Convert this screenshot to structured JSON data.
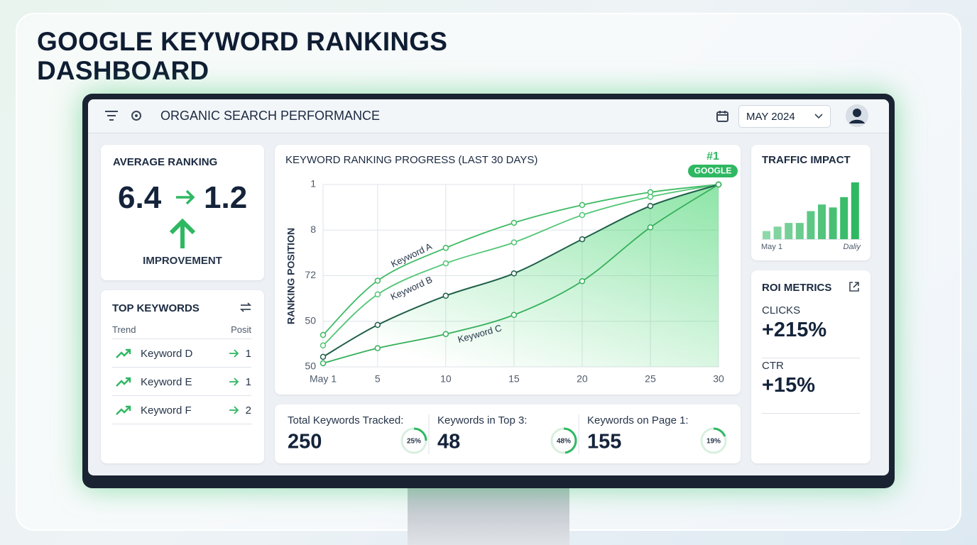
{
  "title": "GOOGLE KEYWORD RANKINGS DASHBOARD",
  "header": {
    "title": "ORGANIC SEARCH PERFORMANCE",
    "date": "MAY 2024"
  },
  "average_ranking": {
    "title": "AVERAGE RANKING",
    "from": "6.4",
    "to": "1.2",
    "label": "IMPROVEMENT"
  },
  "top_keywords": {
    "title": "TOP KEYWORDS",
    "columns": [
      "Trend",
      "Posit"
    ],
    "rows": [
      {
        "keyword": "Keyword D",
        "position": 1
      },
      {
        "keyword": "Keyword E",
        "position": 1
      },
      {
        "keyword": "Keyword F",
        "position": 2
      }
    ]
  },
  "stats": [
    {
      "label": "Total Keywords Tracked:",
      "value": 250,
      "percent": 25,
      "percent_label": "25%"
    },
    {
      "label": "Keywords in Top 3:",
      "value": 48,
      "percent": 48,
      "percent_label": "48%"
    },
    {
      "label": "Keywords on Page 1:",
      "value": 155,
      "percent": 19,
      "percent_label": "19%"
    }
  ],
  "traffic": {
    "title": "TRAFFIC IMPACT",
    "type": "bar",
    "values": [
      11,
      17,
      22,
      22,
      38,
      47,
      43,
      57,
      77
    ],
    "x_labels": [
      "May 1",
      "Daliy"
    ],
    "color": "#2fb862"
  },
  "roi": {
    "title": "ROI METRICS",
    "metrics": [
      {
        "label": "CLICKS",
        "value": "+215%"
      },
      {
        "label": "CTR",
        "value": "+15%"
      }
    ]
  },
  "chart_data": {
    "type": "line",
    "title": "KEYWORD RANKING PROGRESS (LAST 30 DAYS)",
    "y_label": "RANKING POSITION",
    "badge": "#1",
    "badge_label": "GOOGLE",
    "x": [
      1,
      5,
      10,
      15,
      20,
      25,
      30
    ],
    "xlim": [
      1,
      30
    ],
    "xticks": [
      {
        "value": 1,
        "label": "May 1"
      },
      5,
      10,
      15,
      20,
      25,
      30
    ],
    "ylim": [
      0,
      4
    ],
    "yticks": [
      {
        "value": 4,
        "label": "1"
      },
      {
        "value": 3,
        "label": "8"
      },
      {
        "value": 2,
        "label": "72"
      },
      {
        "value": 1,
        "label": "50"
      },
      {
        "value": 0,
        "label": "50"
      }
    ],
    "grid": true,
    "series": [
      {
        "name": "Keyword A",
        "color": "#3dbb63",
        "values": [
          0.7,
          1.89,
          2.61,
          3.16,
          3.55,
          3.83,
          4
        ]
      },
      {
        "name": "Keyword B",
        "color": "#52c676",
        "values": [
          0.47,
          1.59,
          2.27,
          2.73,
          3.33,
          3.73,
          4
        ]
      },
      {
        "color": "#1f5f4a",
        "values": [
          0.22,
          0.92,
          1.56,
          2.05,
          2.8,
          3.53,
          4
        ]
      },
      {
        "name": "Keyword C",
        "color": "#35b05a",
        "values": [
          0.08,
          0.41,
          0.72,
          1.14,
          1.88,
          3.06,
          4
        ]
      }
    ]
  }
}
